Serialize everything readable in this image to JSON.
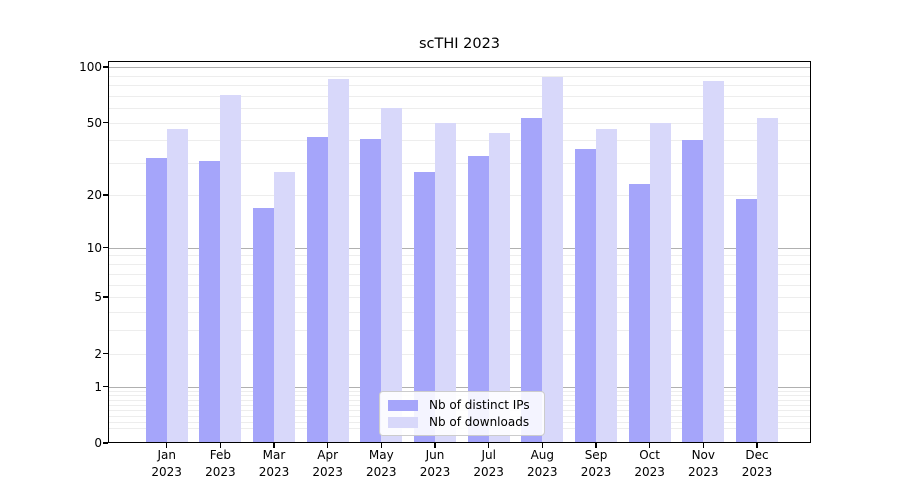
{
  "chart_data": {
    "type": "bar",
    "title": "scTHI 2023",
    "categories": [
      "Jan 2023",
      "Feb 2023",
      "Mar 2023",
      "Apr 2023",
      "May 2023",
      "Jun 2023",
      "Jul 2023",
      "Aug 2023",
      "Sep 2023",
      "Oct 2023",
      "Nov 2023",
      "Dec 2023"
    ],
    "series": [
      {
        "name": "Nb of distinct IPs",
        "color": "#a5a5fa",
        "values": [
          32,
          31,
          17,
          42,
          41,
          27,
          33,
          53,
          36,
          23,
          40,
          19
        ]
      },
      {
        "name": "Nb of downloads",
        "color": "#d8d8fa",
        "values": [
          46,
          71,
          27,
          86,
          60,
          50,
          44,
          88,
          46,
          50,
          84,
          53
        ]
      }
    ],
    "yticks": [
      0,
      1,
      2,
      5,
      10,
      20,
      50,
      100
    ],
    "ylim": [
      0,
      103
    ],
    "yscale": "log10(1+x)",
    "xlabel": "",
    "ylabel": "",
    "grid": "horizontal; faint minors, gray majors at 1, 10, 100",
    "legend_position": "lower center",
    "colors": {
      "bar_distinct_ips": "#a5a5fa",
      "bar_downloads": "#d8d8fa",
      "grid_minor": "#ededed",
      "grid_major": "#b0b0b0",
      "axis": "#000000",
      "background": "#ffffff"
    }
  }
}
